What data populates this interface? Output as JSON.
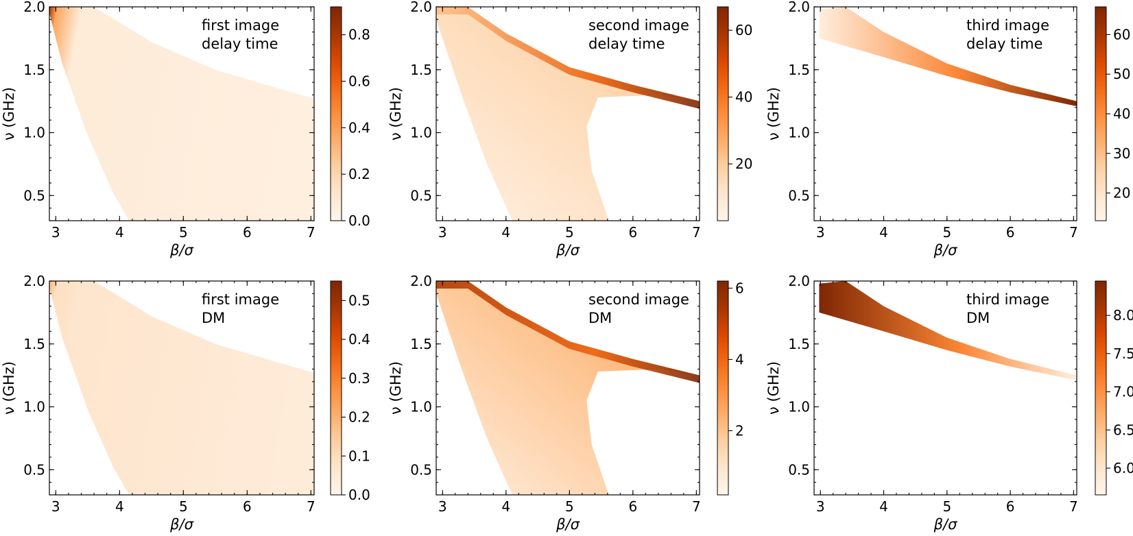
{
  "figure": {
    "description_free": true
  },
  "colormap": [
    "#fff5eb",
    "#fee6ce",
    "#fdd0a2",
    "#fdae6b",
    "#fd8d3c",
    "#f16913",
    "#d94801",
    "#a63603",
    "#7f2704"
  ],
  "chart_data": [
    {
      "type": "heatmap",
      "id": "p1",
      "annotation": [
        "first image",
        "delay time"
      ],
      "xlabel": "β/σ",
      "ylabel": "ν (GHz)",
      "xlim": [
        2.9,
        7.05
      ],
      "ylim": [
        0.3,
        2.0
      ],
      "xticks": [
        3,
        4,
        5,
        6,
        7
      ],
      "xticklabels": [
        "3",
        "4",
        "5",
        "6",
        "7"
      ],
      "yticks": [
        0.5,
        1.0,
        1.5,
        2.0
      ],
      "yticklabels": [
        "0.5",
        "1.0",
        "1.5",
        "2.0"
      ],
      "region": {
        "left_edge": [
          [
            2.9,
            1.95
          ],
          [
            3.1,
            1.55
          ],
          [
            3.5,
            0.98
          ],
          [
            3.9,
            0.52
          ],
          [
            4.15,
            0.3
          ]
        ],
        "right_edge": [
          [
            7.05,
            1.28
          ],
          [
            7.05,
            0.3
          ]
        ],
        "top_edge": [
          [
            3.6,
            2.0
          ],
          [
            4.5,
            1.72
          ],
          [
            5.5,
            1.5
          ],
          [
            6.5,
            1.35
          ],
          [
            7.05,
            1.27
          ]
        ]
      },
      "intensity": {
        "left": 0.88,
        "body": 0.05
      },
      "colorbar": {
        "ticks": [
          0.0,
          0.2,
          0.4,
          0.6,
          0.8
        ],
        "labels": [
          "0.0",
          "0.2",
          "0.4",
          "0.6",
          "0.8"
        ],
        "range": [
          0.0,
          0.92
        ]
      }
    },
    {
      "type": "heatmap",
      "id": "p2",
      "annotation": [
        "second image",
        "delay time"
      ],
      "xlabel": "β/σ",
      "ylabel": "ν (GHz)",
      "xlim": [
        2.9,
        7.05
      ],
      "ylim": [
        0.3,
        2.0
      ],
      "xticks": [
        3,
        4,
        5,
        6,
        7
      ],
      "xticklabels": [
        "3",
        "4",
        "5",
        "6",
        "7"
      ],
      "yticks": [
        0.5,
        1.0,
        1.5,
        2.0
      ],
      "yticklabels": [
        "0.5",
        "1.0",
        "1.5",
        "2.0"
      ],
      "region": {
        "upper": [
          [
            2.9,
            2.0
          ],
          [
            3.4,
            2.0
          ],
          [
            4.0,
            1.79
          ],
          [
            5.0,
            1.52
          ],
          [
            6.0,
            1.38
          ],
          [
            7.05,
            1.25
          ]
        ],
        "left": [
          [
            2.9,
            1.9
          ],
          [
            3.3,
            1.3
          ],
          [
            3.7,
            0.75
          ],
          [
            4.1,
            0.3
          ]
        ],
        "inner_right": [
          [
            5.62,
            0.3
          ],
          [
            5.35,
            0.7
          ],
          [
            5.27,
            1.05
          ],
          [
            5.45,
            1.28
          ],
          [
            6.4,
            1.3
          ]
        ]
      },
      "intensity": {
        "top_band": 1.0,
        "body": 0.08
      },
      "colorbar": {
        "ticks": [
          20,
          40,
          60
        ],
        "labels": [
          "20",
          "40",
          "60"
        ],
        "range": [
          3,
          67
        ]
      }
    },
    {
      "type": "heatmap",
      "id": "p3",
      "annotation": [
        "third image",
        "delay time"
      ],
      "xlabel": "β/σ",
      "ylabel": "ν (GHz)",
      "xlim": [
        2.9,
        7.05
      ],
      "ylim": [
        0.3,
        2.0
      ],
      "xticks": [
        3,
        4,
        5,
        6,
        7
      ],
      "xticklabels": [
        "3",
        "4",
        "5",
        "6",
        "7"
      ],
      "yticks": [
        0.5,
        1.0,
        1.5,
        2.0
      ],
      "yticklabels": [
        "0.5",
        "1.0",
        "1.5",
        "2.0"
      ],
      "region": {
        "upper": [
          [
            2.98,
            1.98
          ],
          [
            3.4,
            2.0
          ],
          [
            4.0,
            1.8
          ],
          [
            5.0,
            1.55
          ],
          [
            6.0,
            1.38
          ],
          [
            7.05,
            1.25
          ]
        ],
        "lower": [
          [
            2.98,
            1.75
          ],
          [
            4.0,
            1.6
          ],
          [
            5.0,
            1.45
          ],
          [
            6.0,
            1.32
          ],
          [
            7.05,
            1.21
          ]
        ]
      },
      "intensity": {
        "left": 0.06,
        "right": 1.0
      },
      "colorbar": {
        "ticks": [
          20,
          30,
          40,
          50,
          60
        ],
        "labels": [
          "20",
          "30",
          "40",
          "50",
          "60"
        ],
        "range": [
          13,
          67
        ]
      }
    },
    {
      "type": "heatmap",
      "id": "p4",
      "annotation": [
        "first image",
        "DM"
      ],
      "xlabel": "β/σ",
      "ylabel": "ν (GHz)",
      "xlim": [
        2.9,
        7.05
      ],
      "ylim": [
        0.3,
        2.0
      ],
      "xticks": [
        3,
        4,
        5,
        6,
        7
      ],
      "xticklabels": [
        "3",
        "4",
        "5",
        "6",
        "7"
      ],
      "yticks": [
        0.5,
        1.0,
        1.5,
        2.0
      ],
      "yticklabels": [
        "0.5",
        "1.0",
        "1.5",
        "2.0"
      ],
      "region": {
        "left_edge": [
          [
            2.9,
            1.95
          ],
          [
            3.1,
            1.55
          ],
          [
            3.5,
            0.98
          ],
          [
            3.9,
            0.52
          ],
          [
            4.15,
            0.3
          ]
        ],
        "right_edge": [
          [
            7.05,
            1.28
          ],
          [
            7.05,
            0.3
          ]
        ],
        "top_edge": [
          [
            3.6,
            2.0
          ],
          [
            4.5,
            1.72
          ],
          [
            5.5,
            1.5
          ],
          [
            6.5,
            1.35
          ],
          [
            7.05,
            1.27
          ]
        ]
      },
      "intensity": {
        "left": 0.35,
        "body": 0.08
      },
      "colorbar": {
        "ticks": [
          0.0,
          0.1,
          0.2,
          0.3,
          0.4,
          0.5
        ],
        "labels": [
          "0.0",
          "0.1",
          "0.2",
          "0.3",
          "0.4",
          "0.5"
        ],
        "range": [
          0.0,
          0.55
        ]
      }
    },
    {
      "type": "heatmap",
      "id": "p5",
      "annotation": [
        "second image",
        "DM"
      ],
      "xlabel": "β/σ",
      "ylabel": "ν (GHz)",
      "xlim": [
        2.9,
        7.05
      ],
      "ylim": [
        0.3,
        2.0
      ],
      "xticks": [
        3,
        4,
        5,
        6,
        7
      ],
      "xticklabels": [
        "3",
        "4",
        "5",
        "6",
        "7"
      ],
      "yticks": [
        0.5,
        1.0,
        1.5,
        2.0
      ],
      "yticklabels": [
        "0.5",
        "1.0",
        "1.5",
        "2.0"
      ],
      "region": {
        "upper": [
          [
            2.9,
            2.0
          ],
          [
            3.4,
            2.0
          ],
          [
            4.0,
            1.79
          ],
          [
            5.0,
            1.52
          ],
          [
            6.0,
            1.38
          ],
          [
            7.05,
            1.25
          ]
        ],
        "left": [
          [
            2.9,
            1.9
          ],
          [
            3.3,
            1.3
          ],
          [
            3.7,
            0.75
          ],
          [
            4.1,
            0.3
          ]
        ],
        "inner_right": [
          [
            5.62,
            0.3
          ],
          [
            5.35,
            0.7
          ],
          [
            5.27,
            1.05
          ],
          [
            5.45,
            1.28
          ],
          [
            6.4,
            1.3
          ]
        ]
      },
      "intensity": {
        "top_band": 1.0,
        "body": 0.12
      },
      "colorbar": {
        "ticks": [
          2,
          4,
          6
        ],
        "labels": [
          "2",
          "4",
          "6"
        ],
        "range": [
          0.2,
          6.2
        ]
      }
    },
    {
      "type": "heatmap",
      "id": "p6",
      "annotation": [
        "third image",
        "DM"
      ],
      "xlabel": "β/σ",
      "ylabel": "ν (GHz)",
      "xlim": [
        2.9,
        7.05
      ],
      "ylim": [
        0.3,
        2.0
      ],
      "xticks": [
        3,
        4,
        5,
        6,
        7
      ],
      "xticklabels": [
        "3",
        "4",
        "5",
        "6",
        "7"
      ],
      "yticks": [
        0.5,
        1.0,
        1.5,
        2.0
      ],
      "yticklabels": [
        "0.5",
        "1.0",
        "1.5",
        "2.0"
      ],
      "region": {
        "upper": [
          [
            2.98,
            1.98
          ],
          [
            3.4,
            2.0
          ],
          [
            4.0,
            1.8
          ],
          [
            5.0,
            1.55
          ],
          [
            6.0,
            1.38
          ],
          [
            7.05,
            1.25
          ]
        ],
        "lower": [
          [
            2.98,
            1.75
          ],
          [
            4.0,
            1.6
          ],
          [
            5.0,
            1.45
          ],
          [
            6.0,
            1.32
          ],
          [
            7.05,
            1.21
          ]
        ]
      },
      "intensity": {
        "left": 1.0,
        "right": 0.05
      },
      "colorbar": {
        "ticks": [
          6.0,
          6.5,
          7.0,
          7.5,
          8.0
        ],
        "labels": [
          "6.0",
          "6.5",
          "7.0",
          "7.5",
          "8.0"
        ],
        "range": [
          5.65,
          8.45
        ]
      }
    }
  ]
}
